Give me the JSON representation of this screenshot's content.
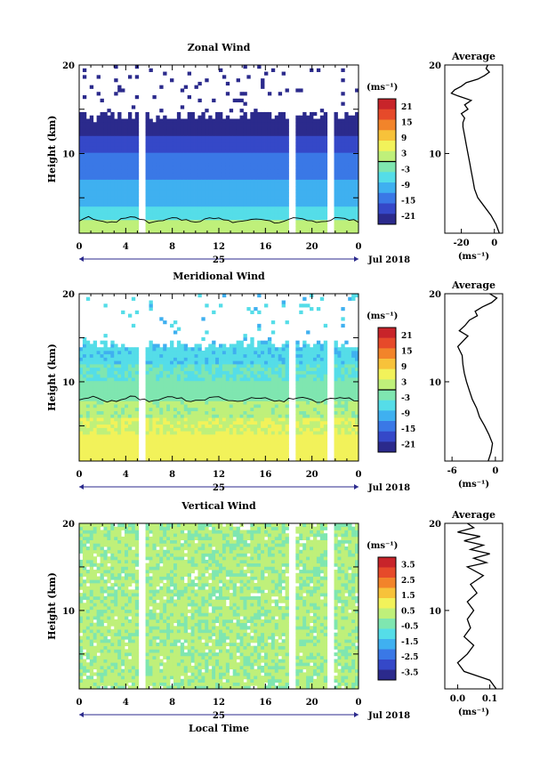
{
  "chart_data": [
    {
      "type": "heatmap",
      "title": "Zonal Wind",
      "ylabel": "Height (km)",
      "xlabel": "",
      "x_ticks": [
        "0",
        "4",
        "8",
        "12",
        "16",
        "20",
        "0"
      ],
      "date_day": "25",
      "date_label": "Jul 2018",
      "ylim": [
        1,
        20
      ],
      "y_ticks": [
        "10",
        "20"
      ],
      "xlim_hours": [
        0,
        24
      ],
      "data_gaps_hours": [
        [
          5.2,
          5.8
        ],
        [
          18.0,
          18.6
        ],
        [
          21.3,
          21.8
        ]
      ],
      "colorbar": {
        "unit_label": "(ms⁻¹)",
        "tick_labels": [
          "21",
          "15",
          "9",
          "3",
          "-3",
          "-9",
          "-15",
          "-21"
        ],
        "range": [
          -24,
          24
        ],
        "zero_contour": true
      },
      "field_bands": [
        {
          "y_from": 1,
          "y_to": 2.5,
          "value": 2
        },
        {
          "y_from": 2.5,
          "y_to": 4,
          "value": -6
        },
        {
          "y_from": 4,
          "y_to": 7,
          "value": -10
        },
        {
          "y_from": 7,
          "y_to": 10,
          "value": -14
        },
        {
          "y_from": 10,
          "y_to": 12,
          "value": -18
        },
        {
          "y_from": 12,
          "y_to": 14,
          "value": -22
        }
      ],
      "profile": {
        "title": "Average",
        "xlabel": "(ms⁻¹)",
        "x_ticks": [
          "-20",
          "0"
        ],
        "y_ticks": [
          "10",
          "20"
        ],
        "xlim": [
          -30,
          5
        ],
        "ylim": [
          1,
          20
        ],
        "points": [
          [
            3,
            1
          ],
          [
            1,
            2
          ],
          [
            -2,
            3
          ],
          [
            -6,
            4
          ],
          [
            -10,
            5
          ],
          [
            -12,
            6
          ],
          [
            -13,
            7
          ],
          [
            -14,
            8
          ],
          [
            -15,
            9
          ],
          [
            -16,
            10
          ],
          [
            -17,
            11
          ],
          [
            -18,
            12
          ],
          [
            -19,
            13
          ],
          [
            -19,
            13.5
          ],
          [
            -18,
            14
          ],
          [
            -20,
            14.5
          ],
          [
            -16,
            15
          ],
          [
            -18,
            15.5
          ],
          [
            -14,
            16
          ],
          [
            -22,
            16.5
          ],
          [
            -26,
            16.8
          ],
          [
            -24,
            17.2
          ],
          [
            -20,
            17.6
          ],
          [
            -17,
            18
          ],
          [
            -10,
            18.4
          ],
          [
            -6,
            18.8
          ],
          [
            -3,
            19.2
          ],
          [
            -5,
            19.6
          ],
          [
            -4,
            20
          ]
        ]
      }
    },
    {
      "type": "heatmap",
      "title": "Meridional Wind",
      "ylabel": "Height (km)",
      "xlabel": "",
      "x_ticks": [
        "0",
        "4",
        "8",
        "12",
        "16",
        "20",
        "0"
      ],
      "date_day": "25",
      "date_label": "Jul 2018",
      "ylim": [
        1,
        20
      ],
      "y_ticks": [
        "10",
        "20"
      ],
      "xlim_hours": [
        0,
        24
      ],
      "data_gaps_hours": [
        [
          5.2,
          5.8
        ],
        [
          18.0,
          18.6
        ],
        [
          21.3,
          21.8
        ]
      ],
      "colorbar": {
        "unit_label": "(ms⁻¹)",
        "tick_labels": [
          "21",
          "15",
          "9",
          "3",
          "-3",
          "-9",
          "-15",
          "-21"
        ],
        "range": [
          -24,
          24
        ],
        "zero_contour": true
      },
      "field_bands": [
        {
          "y_from": 1,
          "y_to": 4,
          "value": 6
        },
        {
          "y_from": 4,
          "y_to": 6,
          "value": 4
        },
        {
          "y_from": 6,
          "y_to": 8,
          "value": 1
        },
        {
          "y_from": 8,
          "y_to": 10,
          "value": -2
        },
        {
          "y_from": 10,
          "y_to": 12,
          "value": -4
        },
        {
          "y_from": 12,
          "y_to": 14,
          "value": -7
        }
      ],
      "profile": {
        "title": "Average",
        "xlabel": "(ms⁻¹)",
        "x_ticks": [
          "-6",
          "0"
        ],
        "y_ticks": [
          "10",
          "20"
        ],
        "xlim": [
          -7,
          1
        ],
        "ylim": [
          1,
          20
        ],
        "points": [
          [
            -1,
            1
          ],
          [
            -0.6,
            2
          ],
          [
            -0.4,
            3
          ],
          [
            -0.9,
            4
          ],
          [
            -1.5,
            5
          ],
          [
            -2.2,
            6
          ],
          [
            -2.6,
            7
          ],
          [
            -3.2,
            8
          ],
          [
            -3.6,
            9
          ],
          [
            -4.0,
            10
          ],
          [
            -4.3,
            11
          ],
          [
            -4.5,
            12
          ],
          [
            -4.6,
            13
          ],
          [
            -5.2,
            14
          ],
          [
            -4.5,
            14.6
          ],
          [
            -3.8,
            15.2
          ],
          [
            -5.0,
            15.8
          ],
          [
            -4.2,
            16.4
          ],
          [
            -3.6,
            17
          ],
          [
            -2.5,
            17.5
          ],
          [
            -2.8,
            18
          ],
          [
            -1.8,
            18.5
          ],
          [
            -0.5,
            19
          ],
          [
            0.2,
            19.5
          ],
          [
            -0.8,
            20
          ]
        ]
      }
    },
    {
      "type": "heatmap",
      "title": "Vertical Wind",
      "ylabel": "Height (km)",
      "xlabel": "Local Time",
      "x_ticks": [
        "0",
        "4",
        "8",
        "12",
        "16",
        "20",
        "0"
      ],
      "date_day": "25",
      "date_label": "Jul 2018",
      "ylim": [
        1,
        20
      ],
      "y_ticks": [
        "10",
        "20"
      ],
      "xlim_hours": [
        0,
        24
      ],
      "data_gaps_hours": [
        [
          5.2,
          5.8
        ],
        [
          18.0,
          18.6
        ],
        [
          21.3,
          21.8
        ]
      ],
      "colorbar": {
        "unit_label": "(ms⁻¹)",
        "tick_labels": [
          "3.5",
          "2.5",
          "1.5",
          "0.5",
          "-0.5",
          "-1.5",
          "-2.5",
          "-3.5"
        ],
        "range": [
          -4,
          4
        ],
        "zero_contour": false
      },
      "field_bands": [
        {
          "y_from": 1,
          "y_to": 20,
          "value": 0.1
        }
      ],
      "profile": {
        "title": "Average",
        "xlabel": "(ms⁻¹)",
        "x_ticks": [
          "0.0",
          "0.1"
        ],
        "y_ticks": [
          "10",
          "20"
        ],
        "xlim": [
          -0.04,
          0.14
        ],
        "ylim": [
          1,
          20
        ],
        "points": [
          [
            0.12,
            1
          ],
          [
            0.1,
            2
          ],
          [
            0.02,
            3
          ],
          [
            0.0,
            4
          ],
          [
            0.03,
            5
          ],
          [
            0.05,
            6
          ],
          [
            0.02,
            7
          ],
          [
            0.04,
            8
          ],
          [
            0.03,
            9
          ],
          [
            0.05,
            10
          ],
          [
            0.03,
            11
          ],
          [
            0.06,
            12
          ],
          [
            0.04,
            13
          ],
          [
            0.08,
            14
          ],
          [
            0.03,
            15
          ],
          [
            0.09,
            15.5
          ],
          [
            0.05,
            16
          ],
          [
            0.1,
            16.5
          ],
          [
            0.04,
            17
          ],
          [
            0.08,
            17.5
          ],
          [
            0.02,
            18
          ],
          [
            0.07,
            18.5
          ],
          [
            0.0,
            19
          ],
          [
            0.05,
            19.5
          ],
          [
            0.03,
            20
          ]
        ]
      }
    }
  ],
  "colorscale": [
    "#2b2a8c",
    "#3548c8",
    "#3a78e6",
    "#3fb0f0",
    "#55dde8",
    "#7fe6b0",
    "#bff07a",
    "#f2f25a",
    "#f7c23a",
    "#f2842a",
    "#e64a2a",
    "#c8242a"
  ]
}
